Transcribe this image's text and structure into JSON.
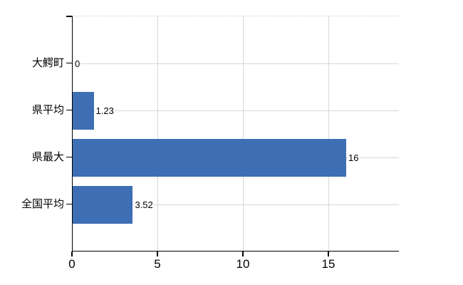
{
  "chart_data": {
    "type": "bar",
    "orientation": "horizontal",
    "title": "",
    "xlabel": "",
    "ylabel": "",
    "categories": [
      "大鰐町",
      "県平均",
      "県最大",
      "全国平均"
    ],
    "values": [
      0,
      1.23,
      16,
      3.52
    ],
    "value_labels": [
      "0",
      "1.23",
      "16",
      "3.52"
    ],
    "x_ticks": [
      0,
      5,
      10,
      15
    ],
    "x_tick_labels": [
      "0",
      "5",
      "10",
      "15"
    ],
    "xlim": [
      0,
      19.125
    ],
    "grid": true,
    "legend": false,
    "colors": {
      "bar": "#3e6eb4",
      "gridline": "#d6d9d4",
      "axis": "#000000",
      "text": "#000000",
      "background": "#ffffff"
    }
  }
}
